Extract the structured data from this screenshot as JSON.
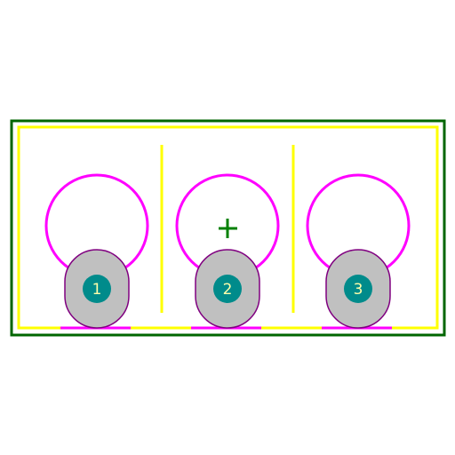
{
  "footprint": {
    "colors": {
      "courtyard": "#006600",
      "silkscreen": "#ffff00",
      "fabrication": "#ff00ff",
      "pad_fill": "#c0c0c0",
      "pad_outline": "#800080",
      "drill": "#008b8b",
      "pad_text": "#ffffaa",
      "origin_marker": "#008000"
    },
    "origin_marker": "crosshair-icon",
    "pins": [
      {
        "number": "1",
        "pad_shape": "oval"
      },
      {
        "number": "2",
        "pad_shape": "oval"
      },
      {
        "number": "3",
        "pad_shape": "oval"
      }
    ]
  }
}
